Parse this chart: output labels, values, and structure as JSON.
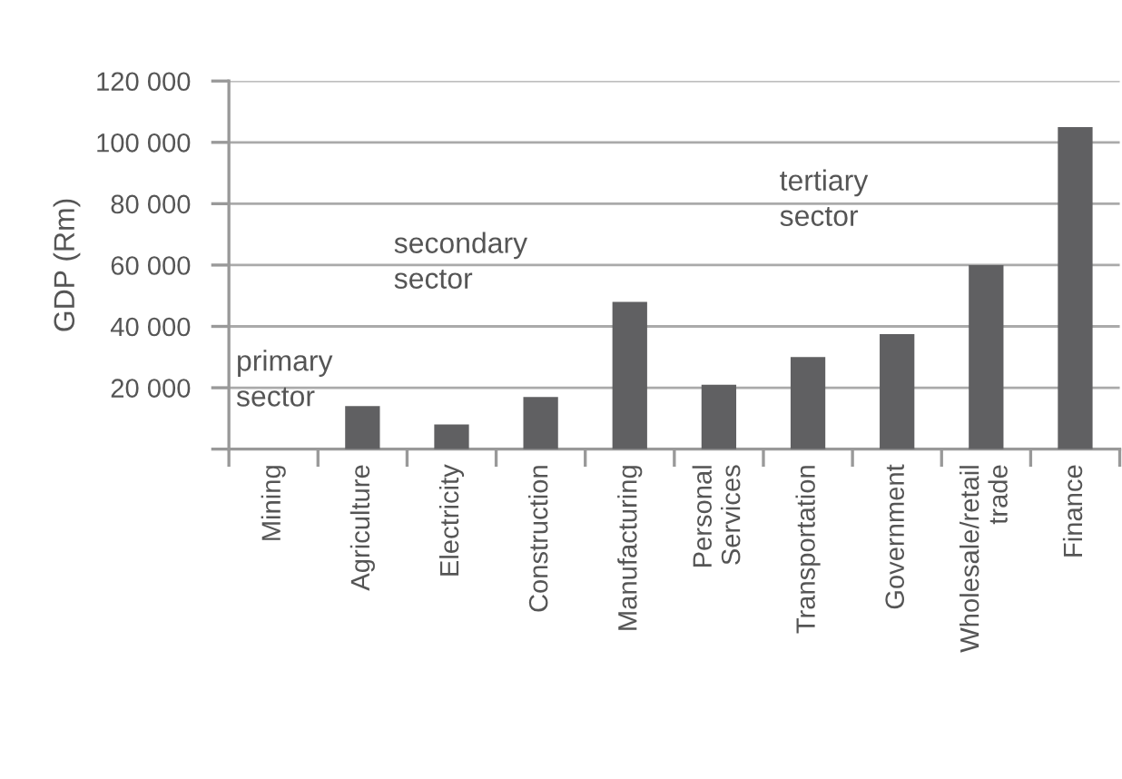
{
  "chart_data": {
    "type": "bar",
    "ylabel": "GDP (Rm)",
    "categories": [
      "Mining",
      "Agriculture",
      "Electricity",
      "Construction",
      "Manufacturing",
      "Personal\nServices",
      "Transportation",
      "Government",
      "Wholesale/retail\ntrade",
      "Finance"
    ],
    "values": [
      null,
      14000,
      8000,
      17000,
      48000,
      21000,
      30000,
      37500,
      60000,
      105000
    ],
    "color": "#606062",
    "ylim": [
      0,
      120000
    ],
    "yticks": [
      {
        "value": 0,
        "label": null
      },
      {
        "value": 20000,
        "label": "20 000"
      },
      {
        "value": 40000,
        "label": "40 000"
      },
      {
        "value": 60000,
        "label": "60 000"
      },
      {
        "value": 80000,
        "label": "80 000"
      },
      {
        "value": 100000,
        "label": "100 000"
      },
      {
        "value": 120000,
        "label": "120 000"
      }
    ],
    "grid": "y",
    "annotations": [
      "primary\nsector",
      "secondary\nsector",
      "tertiary\nsector"
    ]
  }
}
